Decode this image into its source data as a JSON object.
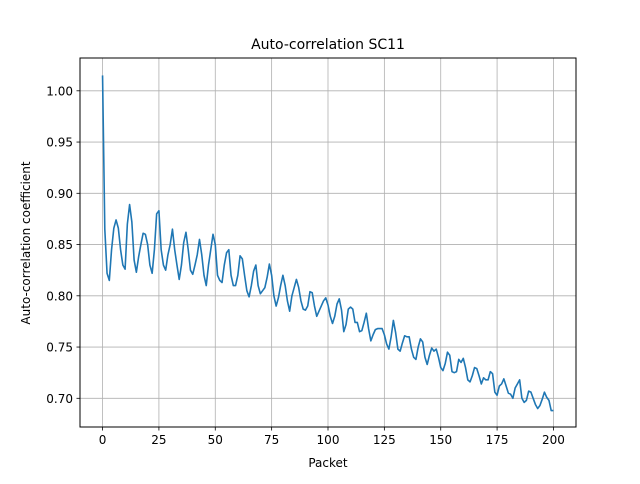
{
  "chart_data": {
    "type": "line",
    "title": "Auto-correlation SC11",
    "xlabel": "Packet",
    "ylabel": "Auto-correlation coefficient",
    "xlim": [
      -10,
      210
    ],
    "ylim": [
      0.672,
      1.032
    ],
    "xticks": [
      0,
      25,
      50,
      75,
      100,
      125,
      150,
      175,
      200
    ],
    "yticks": [
      0.7,
      0.75,
      0.8,
      0.85,
      0.9,
      0.95,
      1.0
    ],
    "xtick_labels": [
      "0",
      "25",
      "50",
      "75",
      "100",
      "125",
      "150",
      "175",
      "200"
    ],
    "ytick_labels": [
      "0.70",
      "0.75",
      "0.80",
      "0.85",
      "0.90",
      "0.95",
      "1.00"
    ],
    "grid": true,
    "line_color": "#1f77b4",
    "grid_color": "#b0b0b0",
    "series": [
      {
        "x": [
          0,
          1,
          2,
          3,
          4,
          5,
          6,
          7,
          8,
          9,
          10,
          11,
          12,
          13,
          14,
          15,
          16,
          17,
          18,
          19,
          20,
          21,
          22,
          23,
          24,
          25,
          26,
          27,
          28,
          29,
          30,
          31,
          32,
          33,
          34,
          35,
          36,
          37,
          38,
          39,
          40,
          41,
          42,
          43,
          44,
          45,
          46,
          47,
          48,
          49,
          50,
          51,
          52,
          53,
          54,
          55,
          56,
          57,
          58,
          59,
          60,
          61,
          62,
          63,
          64,
          65,
          66,
          67,
          68,
          69,
          70,
          71,
          72,
          73,
          74,
          75,
          76,
          77,
          78,
          79,
          80,
          81,
          82,
          83,
          84,
          85,
          86,
          87,
          88,
          89,
          90,
          91,
          92,
          93,
          94,
          95,
          96,
          97,
          98,
          99,
          100,
          101,
          102,
          103,
          104,
          105,
          106,
          107,
          108,
          109,
          110,
          111,
          112,
          113,
          114,
          115,
          116,
          117,
          118,
          119,
          120,
          121,
          122,
          123,
          124,
          125,
          126,
          127,
          128,
          129,
          130,
          131,
          132,
          133,
          134,
          135,
          136,
          137,
          138,
          139,
          140,
          141,
          142,
          143,
          144,
          145,
          146,
          147,
          148,
          149,
          150,
          151,
          152,
          153,
          154,
          155,
          156,
          157,
          158,
          159,
          160,
          161,
          162,
          163,
          164,
          165,
          166,
          167,
          168,
          169,
          170,
          171,
          172,
          173,
          174,
          175,
          176,
          177,
          178,
          179,
          180,
          181,
          182,
          183,
          184,
          185,
          186,
          187,
          188,
          189,
          190,
          191,
          192,
          193,
          194,
          195,
          196,
          197,
          198,
          199,
          200
        ],
        "y": [
          1.015,
          0.865,
          0.822,
          0.815,
          0.845,
          0.866,
          0.874,
          0.866,
          0.845,
          0.83,
          0.826,
          0.87,
          0.889,
          0.872,
          0.835,
          0.823,
          0.838,
          0.85,
          0.861,
          0.86,
          0.85,
          0.83,
          0.822,
          0.845,
          0.88,
          0.883,
          0.845,
          0.83,
          0.825,
          0.84,
          0.85,
          0.865,
          0.845,
          0.83,
          0.816,
          0.83,
          0.852,
          0.862,
          0.845,
          0.825,
          0.821,
          0.83,
          0.84,
          0.855,
          0.84,
          0.82,
          0.81,
          0.83,
          0.845,
          0.86,
          0.85,
          0.82,
          0.815,
          0.813,
          0.83,
          0.842,
          0.845,
          0.82,
          0.81,
          0.81,
          0.82,
          0.839,
          0.836,
          0.82,
          0.805,
          0.799,
          0.81,
          0.824,
          0.83,
          0.81,
          0.802,
          0.805,
          0.808,
          0.818,
          0.831,
          0.82,
          0.8,
          0.79,
          0.798,
          0.81,
          0.82,
          0.81,
          0.795,
          0.785,
          0.8,
          0.808,
          0.816,
          0.808,
          0.795,
          0.787,
          0.786,
          0.79,
          0.804,
          0.803,
          0.79,
          0.78,
          0.785,
          0.79,
          0.795,
          0.798,
          0.791,
          0.78,
          0.773,
          0.78,
          0.792,
          0.797,
          0.786,
          0.765,
          0.772,
          0.787,
          0.789,
          0.787,
          0.774,
          0.774,
          0.765,
          0.766,
          0.774,
          0.783,
          0.768,
          0.756,
          0.762,
          0.767,
          0.768,
          0.768,
          0.768,
          0.762,
          0.753,
          0.748,
          0.76,
          0.776,
          0.764,
          0.748,
          0.746,
          0.754,
          0.761,
          0.76,
          0.76,
          0.748,
          0.74,
          0.738,
          0.75,
          0.758,
          0.755,
          0.74,
          0.733,
          0.742,
          0.749,
          0.746,
          0.748,
          0.74,
          0.73,
          0.727,
          0.734,
          0.745,
          0.742,
          0.726,
          0.725,
          0.726,
          0.738,
          0.735,
          0.739,
          0.73,
          0.718,
          0.716,
          0.722,
          0.73,
          0.729,
          0.722,
          0.714,
          0.72,
          0.718,
          0.718,
          0.726,
          0.724,
          0.706,
          0.703,
          0.712,
          0.714,
          0.719,
          0.712,
          0.705,
          0.704,
          0.7,
          0.71,
          0.714,
          0.718,
          0.7,
          0.696,
          0.698,
          0.707,
          0.706,
          0.7,
          0.694,
          0.69,
          0.693,
          0.699,
          0.706,
          0.701,
          0.698,
          0.688,
          0.688
        ]
      }
    ]
  }
}
